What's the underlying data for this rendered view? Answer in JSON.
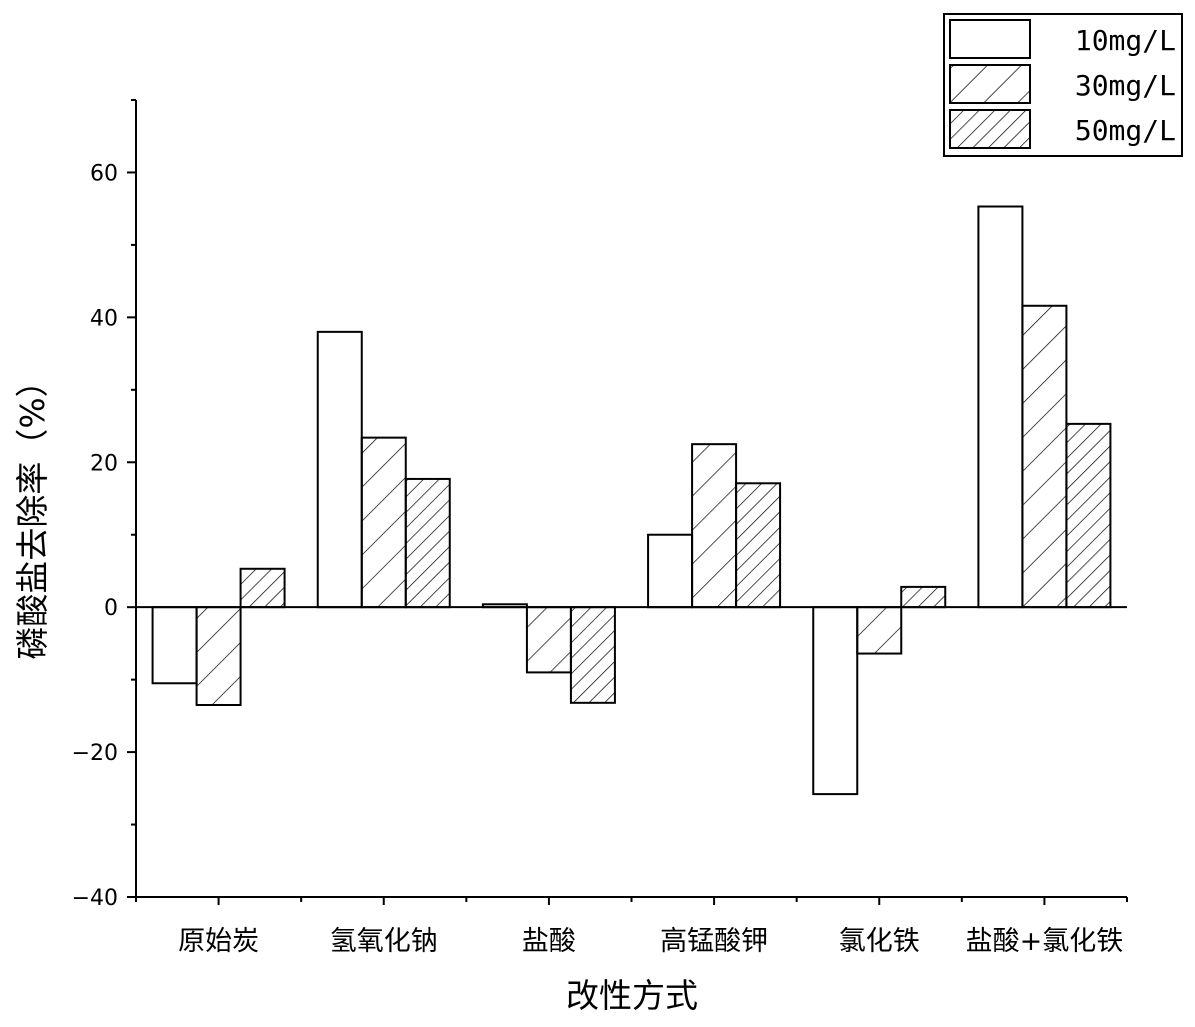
{
  "chart_data": {
    "type": "bar",
    "title": "",
    "xlabel": "改性方式",
    "ylabel": "磷酸盐去除率（%）",
    "ylim": [
      -40,
      70
    ],
    "yticks": [
      -40,
      -20,
      0,
      20,
      40,
      60
    ],
    "categories": [
      "原始炭",
      "氢氧化钠",
      "盐酸",
      "高锰酸钾",
      "氯化铁",
      "盐酸+氯化铁"
    ],
    "series": [
      {
        "name": "10mg/L",
        "pattern": "none",
        "values": [
          -10.5,
          38.0,
          0.4,
          10.0,
          -25.8,
          55.3
        ]
      },
      {
        "name": "30mg/L",
        "pattern": "sparse-hatch",
        "values": [
          -13.5,
          23.4,
          -9.0,
          22.5,
          -6.4,
          41.6
        ]
      },
      {
        "name": "50mg/L",
        "pattern": "dense-hatch",
        "values": [
          5.3,
          17.7,
          -13.2,
          17.1,
          2.8,
          25.3
        ]
      }
    ],
    "legend_position": "top-right",
    "grid": false
  },
  "colors": {
    "bar_fill": "#ffffff",
    "stroke": "#000000"
  }
}
